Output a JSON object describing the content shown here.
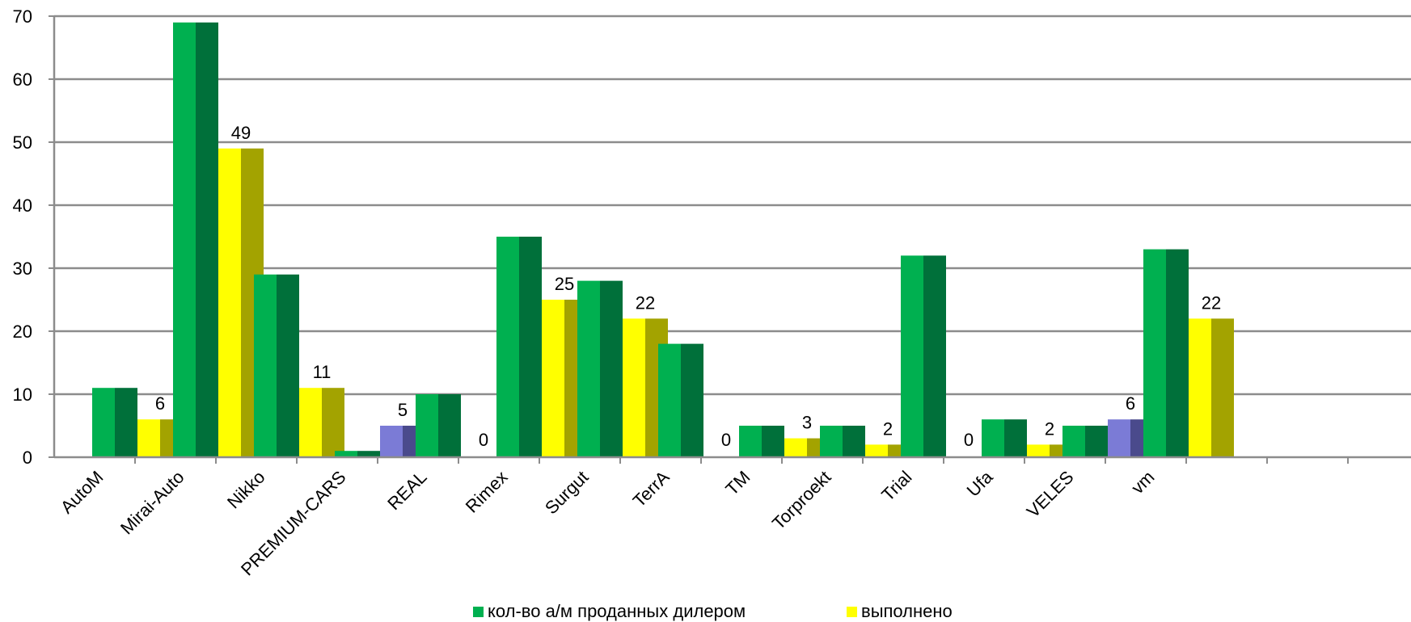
{
  "chart_data": {
    "type": "bar",
    "title": "",
    "xlabel": "",
    "ylabel": "",
    "ylim": [
      0,
      70
    ],
    "yticks": [
      0,
      10,
      20,
      30,
      40,
      50,
      60,
      70
    ],
    "grid": true,
    "legend_position": "bottom",
    "categories": [
      "AutoM",
      "Mirai-Auto",
      "Nikko",
      "PREMIUM-CARS",
      "REAL",
      "Rimex",
      "Surgut",
      "TerrA",
      "TM",
      "Torproekt",
      "Trial",
      "Ufa",
      "VELES",
      "vm",
      "",
      ""
    ],
    "series": [
      {
        "name": "кол-во а/м проданных дилером",
        "color": "#00b050",
        "shade_color": "#00703a",
        "values": [
          11,
          69,
          29,
          1,
          10,
          35,
          28,
          18,
          5,
          5,
          32,
          6,
          5,
          33,
          null,
          null
        ]
      },
      {
        "name": "выполнено",
        "color": "#ffff00",
        "shade_color": "#a3a300",
        "values": [
          6,
          49,
          11,
          5,
          0,
          25,
          22,
          0,
          3,
          2,
          0,
          2,
          6,
          22,
          null,
          null
        ],
        "data_labels": [
          "6",
          "49",
          "11",
          "5",
          "0",
          "25",
          "22",
          "0",
          "3",
          "2",
          "0",
          "2",
          "6",
          "22",
          "",
          ""
        ],
        "highlight": {
          "indices": [
            3,
            12
          ],
          "color": "#7b7bd6",
          "shade_color": "#4a4a8c"
        }
      }
    ]
  }
}
